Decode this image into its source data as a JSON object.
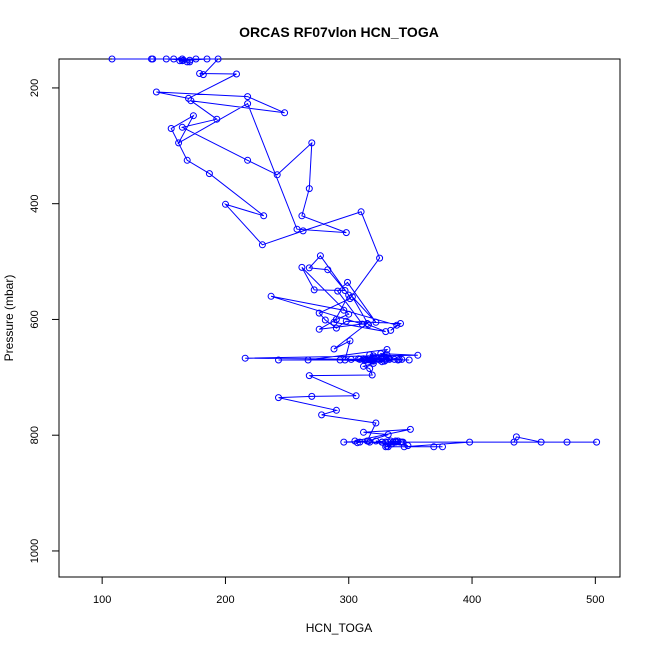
{
  "chart_data": {
    "type": "scatter",
    "title": "ORCAS RF07vlon HCN_TOGA",
    "xlabel": "HCN_TOGA",
    "ylabel": "Pressure (mbar)",
    "xlim": [
      65,
      520
    ],
    "ylim": [
      1045,
      150
    ],
    "y_reversed": true,
    "grid": false,
    "legend": "none",
    "line_color": "#0000ff",
    "marker": "open-circle",
    "x_ticks": [
      100,
      200,
      300,
      400,
      500
    ],
    "y_ticks": [
      200,
      400,
      600,
      800,
      1000
    ],
    "series": [
      {
        "points": [
          [
            108,
            150
          ],
          [
            141,
            150
          ],
          [
            152,
            150
          ],
          [
            171,
            152
          ],
          [
            171,
            155
          ],
          [
            169,
            155
          ],
          [
            158,
            150
          ],
          [
            165,
            150
          ],
          [
            166,
            152
          ],
          [
            163,
            153
          ],
          [
            185,
            150
          ],
          [
            165,
            153
          ],
          [
            176,
            150
          ],
          [
            140,
            150
          ],
          [
            194,
            150
          ],
          [
            182,
            177
          ],
          [
            179,
            175
          ],
          [
            209,
            176
          ],
          [
            170,
            218
          ],
          [
            144,
            207
          ],
          [
            218,
            215
          ],
          [
            248,
            243
          ],
          [
            172,
            222
          ],
          [
            193,
            254
          ],
          [
            165,
            268
          ],
          [
            218,
            325
          ],
          [
            242,
            350
          ],
          [
            270,
            295
          ],
          [
            268,
            374
          ],
          [
            262,
            421
          ],
          [
            298,
            450
          ],
          [
            258,
            444
          ],
          [
            218,
            227
          ],
          [
            162,
            295
          ],
          [
            174,
            248
          ],
          [
            156,
            270
          ],
          [
            169,
            325
          ],
          [
            187,
            348
          ],
          [
            231,
            421
          ],
          [
            200,
            401
          ],
          [
            230,
            471
          ],
          [
            263,
            447
          ],
          [
            310,
            414
          ],
          [
            325,
            494
          ],
          [
            301,
            564
          ],
          [
            276,
            589
          ],
          [
            281,
            601
          ],
          [
            290,
            615
          ],
          [
            298,
            603
          ],
          [
            342,
            607
          ],
          [
            334,
            619
          ],
          [
            339,
            610
          ],
          [
            296,
            584
          ],
          [
            237,
            560
          ],
          [
            311,
            608
          ],
          [
            291,
            551
          ],
          [
            299,
            536
          ],
          [
            322,
            605
          ],
          [
            303,
            561
          ],
          [
            316,
            609
          ],
          [
            330,
            621
          ],
          [
            288,
            605
          ],
          [
            300,
            558
          ],
          [
            277,
            490
          ],
          [
            268,
            511
          ],
          [
            283,
            514
          ],
          [
            297,
            550
          ],
          [
            272,
            549
          ],
          [
            262,
            510
          ],
          [
            300,
            591
          ],
          [
            290,
            600
          ],
          [
            276,
            617
          ],
          [
            315,
            607
          ],
          [
            288,
            651
          ],
          [
            301,
            637
          ],
          [
            297,
            670
          ],
          [
            309,
            669
          ],
          [
            319,
            669
          ],
          [
            329,
            672
          ],
          [
            326,
            659
          ],
          [
            356,
            662
          ],
          [
            320,
            663
          ],
          [
            216,
            667
          ],
          [
            313,
            669
          ],
          [
            308,
            668
          ],
          [
            326,
            667
          ],
          [
            330,
            668
          ],
          [
            333,
            667
          ],
          [
            331,
            661
          ],
          [
            317,
            661
          ],
          [
            343,
            669
          ],
          [
            337,
            669
          ],
          [
            314,
            670
          ],
          [
            319,
            671
          ],
          [
            316,
            668
          ],
          [
            349,
            670
          ],
          [
            340,
            670
          ],
          [
            243,
            670
          ],
          [
            293,
            670
          ],
          [
            327,
            673
          ],
          [
            332,
            667
          ],
          [
            325,
            670
          ],
          [
            302,
            669
          ],
          [
            330,
            670
          ],
          [
            341,
            669
          ],
          [
            333,
            669
          ],
          [
            313,
            671
          ],
          [
            321,
            669
          ],
          [
            317,
            670
          ],
          [
            320,
            672
          ],
          [
            312,
            668
          ],
          [
            318,
            670
          ],
          [
            267,
            670
          ],
          [
            331,
            652
          ],
          [
            324,
            668
          ],
          [
            320,
            676
          ],
          [
            312,
            681
          ],
          [
            317,
            685
          ],
          [
            319,
            696
          ],
          [
            268,
            697
          ],
          [
            306,
            732
          ],
          [
            270,
            733
          ],
          [
            243,
            735
          ],
          [
            290,
            757
          ],
          [
            278,
            765
          ],
          [
            322,
            779
          ],
          [
            315,
            810
          ],
          [
            307,
            813
          ],
          [
            305,
            810
          ],
          [
            350,
            790
          ],
          [
            312,
            795
          ],
          [
            332,
            799
          ],
          [
            316,
            810
          ],
          [
            296,
            812
          ],
          [
            309,
            812
          ],
          [
            327,
            812
          ],
          [
            322,
            810
          ],
          [
            332,
            812
          ],
          [
            338,
            810
          ],
          [
            343,
            812
          ],
          [
            336,
            812
          ],
          [
            340,
            810
          ],
          [
            344,
            812
          ],
          [
            330,
            812
          ],
          [
            317,
            812
          ],
          [
            348,
            818
          ],
          [
            335,
            815
          ],
          [
            330,
            820
          ],
          [
            376,
            820
          ],
          [
            369,
            820
          ],
          [
            345,
            820
          ],
          [
            398,
            812
          ],
          [
            434,
            812
          ],
          [
            436,
            803
          ],
          [
            456,
            812
          ],
          [
            477,
            812
          ],
          [
            501,
            812
          ],
          [
            327,
            812
          ],
          [
            342,
            812
          ],
          [
            331,
            819
          ],
          [
            336,
            812
          ],
          [
            334,
            810
          ],
          [
            338,
            812
          ],
          [
            332,
            820
          ],
          [
            330,
            812
          ]
        ]
      }
    ]
  }
}
